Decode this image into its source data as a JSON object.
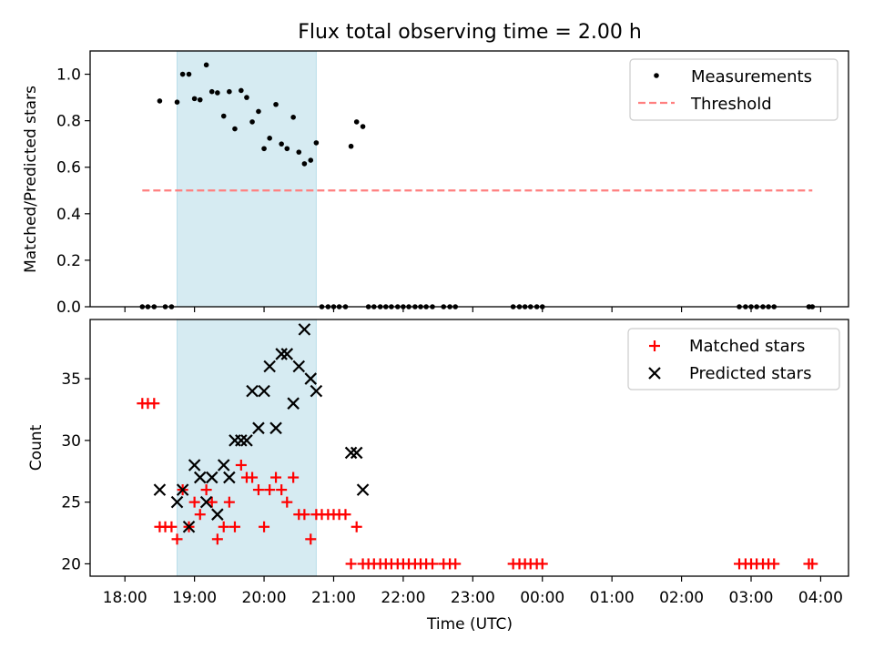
{
  "chart_data": [
    {
      "type": "scatter",
      "title": "Flux total observing time = 2.00 h",
      "xlabel": "",
      "ylabel": "Matched/Predicted stars",
      "xlim": [
        17.5,
        28.4
      ],
      "ylim": [
        0,
        1.1
      ],
      "yticks": [
        0.0,
        0.2,
        0.4,
        0.6,
        0.8,
        1.0
      ],
      "ytick_labels": [
        "0.0",
        "0.2",
        "0.4",
        "0.6",
        "0.8",
        "1.0"
      ],
      "shaded_span": [
        18.75,
        20.75
      ],
      "series": [
        {
          "name": "Measurements",
          "marker": "dot",
          "color": "#000000",
          "x": [
            18.25,
            18.33,
            18.42,
            18.5,
            18.58,
            18.67,
            18.75,
            18.83,
            18.92,
            19.0,
            19.08,
            19.17,
            19.25,
            19.33,
            19.42,
            19.5,
            19.58,
            19.67,
            19.75,
            19.83,
            19.92,
            20.0,
            20.08,
            20.17,
            20.25,
            20.33,
            20.42,
            20.5,
            20.58,
            20.67,
            20.75,
            20.83,
            20.92,
            21.0,
            21.08,
            21.17,
            21.25,
            21.33,
            21.42,
            21.5,
            21.58,
            21.67,
            21.75,
            21.83,
            21.92,
            22.0,
            22.08,
            22.17,
            22.25,
            22.33,
            22.42,
            22.58,
            22.67,
            22.75,
            23.58,
            23.67,
            23.75,
            23.83,
            23.92,
            24.0,
            26.83,
            26.92,
            27.0,
            27.08,
            27.17,
            27.25,
            27.33,
            27.83,
            27.88
          ],
          "y": [
            0,
            0,
            0,
            0.885,
            0,
            0,
            0.88,
            1.0,
            1.0,
            0.895,
            0.89,
            1.04,
            0.925,
            0.92,
            0.82,
            0.925,
            0.765,
            0.93,
            0.9,
            0.795,
            0.84,
            0.68,
            0.725,
            0.87,
            0.7,
            0.68,
            0.815,
            0.665,
            0.615,
            0.63,
            0.705,
            0,
            0,
            0,
            0,
            0,
            0.69,
            0.795,
            0.775,
            0,
            0,
            0,
            0,
            0,
            0,
            0,
            0,
            0,
            0,
            0,
            0,
            0,
            0,
            0,
            0,
            0,
            0,
            0,
            0,
            0,
            0,
            0,
            0,
            0,
            0,
            0,
            0,
            0,
            0
          ]
        },
        {
          "name": "Threshold",
          "marker": "dashed-line",
          "color": "#ff7f7f",
          "x": [
            18.25,
            27.88
          ],
          "y": [
            0.5,
            0.5
          ]
        }
      ],
      "legend_loc": "upper right"
    },
    {
      "type": "scatter",
      "title": "",
      "xlabel": "Time (UTC)",
      "ylabel": "Count",
      "xlim": [
        17.5,
        28.4
      ],
      "ylim": [
        19,
        39.8
      ],
      "yticks": [
        20,
        25,
        30,
        35
      ],
      "ytick_labels": [
        "20",
        "25",
        "30",
        "35"
      ],
      "xticks": [
        18,
        19,
        20,
        21,
        22,
        23,
        24,
        25,
        26,
        27,
        28
      ],
      "xtick_labels": [
        "18:00",
        "19:00",
        "20:00",
        "21:00",
        "22:00",
        "23:00",
        "00:00",
        "01:00",
        "02:00",
        "03:00",
        "04:00"
      ],
      "shaded_span": [
        18.75,
        20.75
      ],
      "series": [
        {
          "name": "Matched stars",
          "marker": "plus",
          "color": "#ff0000",
          "x": [
            18.25,
            18.33,
            18.42,
            18.5,
            18.58,
            18.67,
            18.75,
            18.83,
            18.92,
            19.0,
            19.08,
            19.17,
            19.25,
            19.33,
            19.42,
            19.5,
            19.58,
            19.67,
            19.75,
            19.83,
            19.92,
            20.0,
            20.08,
            20.17,
            20.25,
            20.33,
            20.42,
            20.5,
            20.58,
            20.67,
            20.75,
            20.83,
            20.92,
            21.0,
            21.08,
            21.17,
            21.25,
            21.33,
            21.42,
            21.5,
            21.58,
            21.67,
            21.75,
            21.83,
            21.92,
            22.0,
            22.08,
            22.17,
            22.25,
            22.33,
            22.42,
            22.58,
            22.67,
            22.75,
            23.58,
            23.67,
            23.75,
            23.83,
            23.92,
            24.0,
            26.83,
            26.92,
            27.0,
            27.08,
            27.17,
            27.25,
            27.33,
            27.83,
            27.88
          ],
          "y": [
            33,
            33,
            33,
            23,
            23,
            23,
            22,
            26,
            23,
            25,
            24,
            26,
            25,
            22,
            23,
            25,
            23,
            28,
            27,
            27,
            26,
            23,
            26,
            27,
            26,
            25,
            27,
            24,
            24,
            22,
            24,
            24,
            24,
            24,
            24,
            24,
            20,
            23,
            20,
            20,
            20,
            20,
            20,
            20,
            20,
            20,
            20,
            20,
            20,
            20,
            20,
            20,
            20,
            20,
            20,
            20,
            20,
            20,
            20,
            20,
            20,
            20,
            20,
            20,
            20,
            20,
            20,
            20,
            20
          ]
        },
        {
          "name": "Predicted stars",
          "marker": "x",
          "color": "#000000",
          "x": [
            18.5,
            18.75,
            18.83,
            18.92,
            19.0,
            19.08,
            19.17,
            19.25,
            19.33,
            19.42,
            19.5,
            19.58,
            19.67,
            19.75,
            19.83,
            19.92,
            20.0,
            20.08,
            20.17,
            20.25,
            20.33,
            20.42,
            20.5,
            20.58,
            20.67,
            20.75,
            21.25,
            21.33,
            21.42
          ],
          "y": [
            26,
            25,
            26,
            23,
            28,
            27,
            25,
            27,
            24,
            28,
            27,
            30,
            30,
            30,
            34,
            31,
            34,
            36,
            31,
            37,
            37,
            33,
            36,
            39,
            35,
            34,
            29,
            29,
            26
          ]
        }
      ],
      "legend_loc": "upper right"
    }
  ]
}
